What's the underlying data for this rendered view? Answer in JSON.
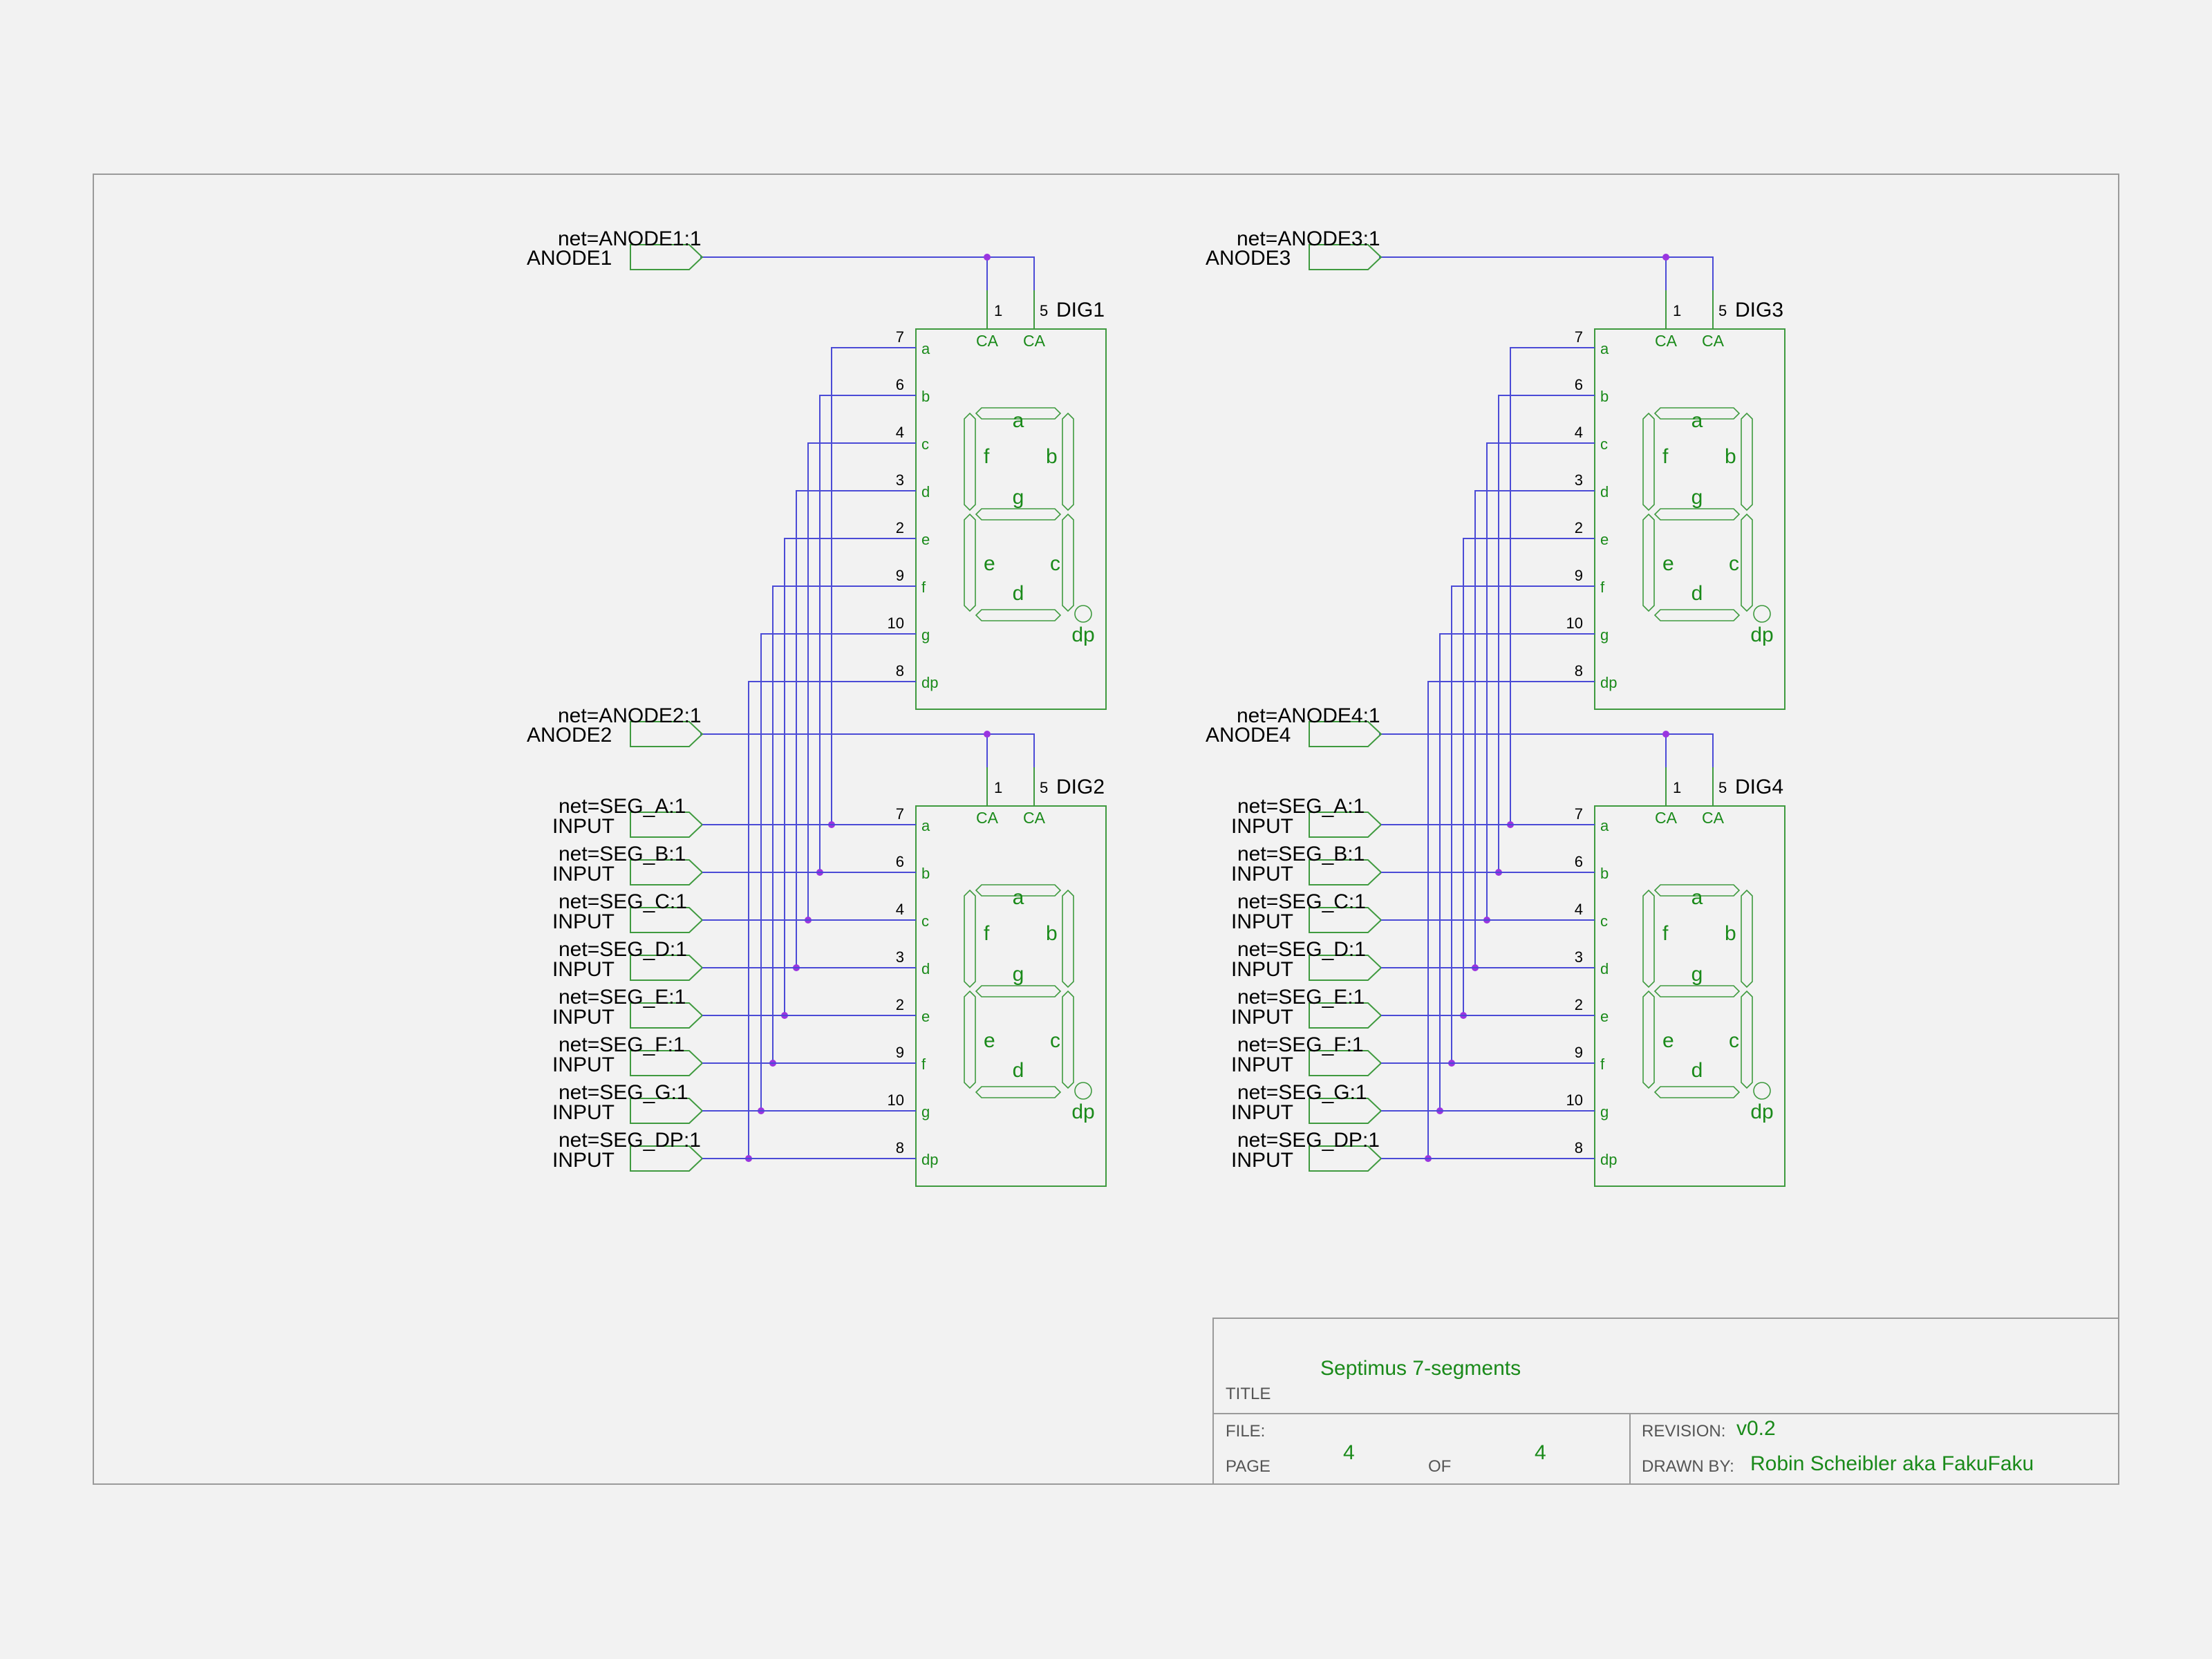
{
  "digits": [
    {
      "ref": "DIG1",
      "anode_label": "ANODE1",
      "anode_net": "net=ANODE1:1",
      "pin_ca1": "1",
      "pin_ca2": "5",
      "has_inputs": false
    },
    {
      "ref": "DIG2",
      "anode_label": "ANODE2",
      "anode_net": "net=ANODE2:1",
      "pin_ca1": "1",
      "pin_ca2": "5",
      "has_inputs": true
    },
    {
      "ref": "DIG3",
      "anode_label": "ANODE3",
      "anode_net": "net=ANODE3:1",
      "pin_ca1": "1",
      "pin_ca2": "5",
      "has_inputs": false
    },
    {
      "ref": "DIG4",
      "anode_label": "ANODE4",
      "anode_net": "net=ANODE4:1",
      "pin_ca1": "1",
      "pin_ca2": "5",
      "has_inputs": true
    }
  ],
  "ca_label": "CA",
  "pins": [
    {
      "name": "a",
      "num": "7"
    },
    {
      "name": "b",
      "num": "6"
    },
    {
      "name": "c",
      "num": "4"
    },
    {
      "name": "d",
      "num": "3"
    },
    {
      "name": "e",
      "num": "2"
    },
    {
      "name": "f",
      "num": "9"
    },
    {
      "name": "g",
      "num": "10"
    },
    {
      "name": "dp",
      "num": "8"
    }
  ],
  "segment_labels": {
    "a": "a",
    "b": "b",
    "c": "c",
    "d": "d",
    "e": "e",
    "f": "f",
    "g": "g",
    "dp": "dp"
  },
  "inputs": [
    {
      "label": "INPUT",
      "net": "net=SEG_A:1"
    },
    {
      "label": "INPUT",
      "net": "net=SEG_B:1"
    },
    {
      "label": "INPUT",
      "net": "net=SEG_C:1"
    },
    {
      "label": "INPUT",
      "net": "net=SEG_D:1"
    },
    {
      "label": "INPUT",
      "net": "net=SEG_E:1"
    },
    {
      "label": "INPUT",
      "net": "net=SEG_F:1"
    },
    {
      "label": "INPUT",
      "net": "net=SEG_G:1"
    },
    {
      "label": "INPUT",
      "net": "net=SEG_DP:1"
    }
  ],
  "title_block": {
    "title_label": "TITLE",
    "title_value": "Septimus   7-segments",
    "file_label": "FILE:",
    "page_label": "PAGE",
    "page_value": "4",
    "of_label": "OF",
    "of_value": "4",
    "revision_label": "REVISION:",
    "revision_value": "v0.2",
    "drawn_by_label": "DRAWN BY:",
    "drawn_by_value": "Robin Scheibler aka FakuFaku"
  },
  "colors": {
    "wire": "#4b4bd6",
    "junction": "#9a35e0",
    "component": "#3f9a3f",
    "component_text": "#1a8a1a",
    "frame": "#9a9a9a"
  }
}
